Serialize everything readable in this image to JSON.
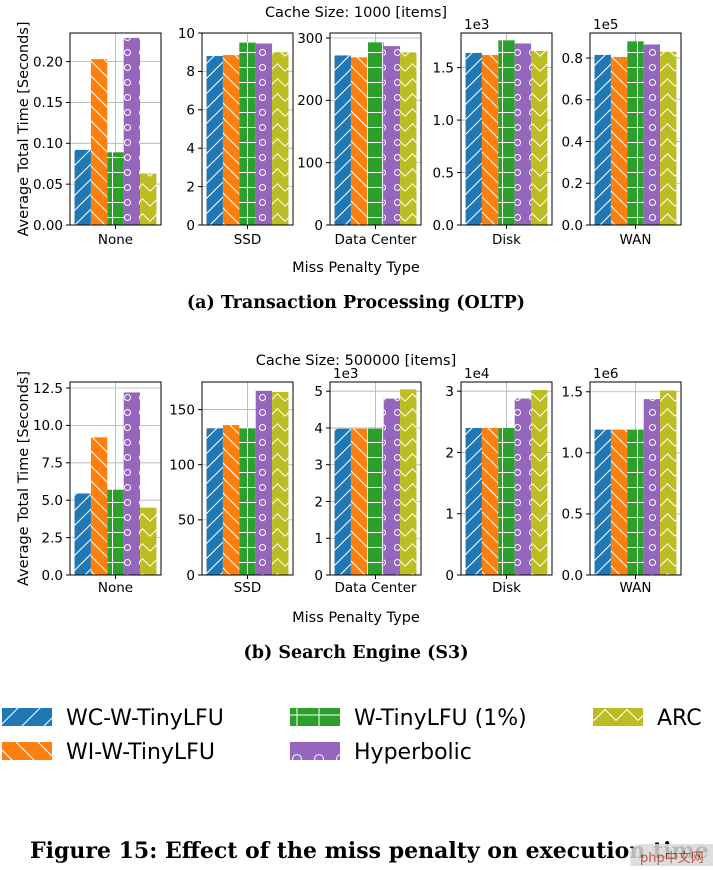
{
  "legend_entries": [
    {
      "name": "WC-W-TinyLFU",
      "color": "#1f77b4",
      "pattern": "diag"
    },
    {
      "name": "WI-W-TinyLFU",
      "color": "#ff7f0e",
      "pattern": "backdiag"
    },
    {
      "name": "W-TinyLFU (1%)",
      "color": "#2ca02c",
      "pattern": "grid"
    },
    {
      "name": "Hyperbolic",
      "color": "#9467bd",
      "pattern": "circles"
    },
    {
      "name": "ARC",
      "color": "#bcbd22",
      "pattern": "chevron"
    }
  ],
  "figure_caption": "Figure 15: Effect of the miss penalty on execution time",
  "watermark_text": "php中文网",
  "chart_data": [
    {
      "type": "bar",
      "suptitle": "Cache Size: 1000 [items]",
      "caption": "(a) Transaction Processing (OLTP)",
      "ylabel": "Average Total Time [Seconds]",
      "xlabel": "Miss Penalty Type",
      "panels": [
        {
          "category": "None",
          "multiplier": "",
          "ylim": [
            0,
            0.235
          ],
          "ticks": [
            0,
            0.05,
            0.1,
            0.15,
            0.2
          ],
          "tick_labels": [
            "0.00",
            "0.05",
            "0.10",
            "0.15",
            "0.20"
          ],
          "values": [
            0.092,
            0.203,
            0.089,
            0.229,
            0.063
          ]
        },
        {
          "category": "SSD",
          "multiplier": "",
          "ylim": [
            0,
            10
          ],
          "ticks": [
            0,
            2,
            4,
            6,
            8,
            10
          ],
          "tick_labels": [
            "0",
            "2",
            "4",
            "6",
            "8",
            "10"
          ],
          "values": [
            8.8,
            8.85,
            9.5,
            9.45,
            9.0
          ]
        },
        {
          "category": "Data Center",
          "multiplier": "",
          "ylim": [
            0,
            308
          ],
          "ticks": [
            0,
            100,
            200,
            300
          ],
          "tick_labels": [
            "0",
            "100",
            "200",
            "300"
          ],
          "values": [
            272,
            269,
            293,
            287,
            277
          ]
        },
        {
          "category": "Disk",
          "multiplier": "1e3",
          "ylim": [
            0,
            1.83
          ],
          "ticks": [
            0,
            0.5,
            1.0,
            1.5
          ],
          "tick_labels": [
            "0.0",
            "0.5",
            "1.0",
            "1.5"
          ],
          "values": [
            1.64,
            1.62,
            1.76,
            1.73,
            1.66
          ]
        },
        {
          "category": "WAN",
          "multiplier": "1e5",
          "ylim": [
            0,
            0.92
          ],
          "ticks": [
            0,
            0.2,
            0.4,
            0.6,
            0.8
          ],
          "tick_labels": [
            "0.0",
            "0.2",
            "0.4",
            "0.6",
            "0.8"
          ],
          "values": [
            0.815,
            0.805,
            0.88,
            0.865,
            0.83
          ]
        }
      ]
    },
    {
      "type": "bar",
      "suptitle": "Cache Size: 500000 [items]",
      "caption": "(b) Search Engine (S3)",
      "ylabel": "Average Total Time [Seconds]",
      "xlabel": "Miss Penalty Type",
      "panels": [
        {
          "category": "None",
          "multiplier": "",
          "ylim": [
            0,
            12.9
          ],
          "ticks": [
            0,
            2.5,
            5,
            7.5,
            10,
            12.5
          ],
          "tick_labels": [
            "0.0",
            "2.5",
            "5.0",
            "7.5",
            "10.0",
            "12.5"
          ],
          "values": [
            5.45,
            9.2,
            5.7,
            12.2,
            4.5
          ]
        },
        {
          "category": "SSD",
          "multiplier": "",
          "ylim": [
            0,
            175
          ],
          "ticks": [
            0,
            50,
            100,
            150
          ],
          "tick_labels": [
            "0",
            "50",
            "100",
            "150"
          ],
          "values": [
            133,
            136,
            133,
            167,
            166
          ]
        },
        {
          "category": "Data Center",
          "multiplier": "1e3",
          "ylim": [
            0,
            5.25
          ],
          "ticks": [
            0,
            1,
            2,
            3,
            4,
            5
          ],
          "tick_labels": [
            "0",
            "1",
            "2",
            "3",
            "4",
            "5"
          ],
          "values": [
            3.98,
            3.98,
            3.98,
            4.8,
            5.05
          ]
        },
        {
          "category": "Disk",
          "multiplier": "1e4",
          "ylim": [
            0,
            3.15
          ],
          "ticks": [
            0,
            1,
            2,
            3
          ],
          "tick_labels": [
            "0",
            "1",
            "2",
            "3"
          ],
          "values": [
            2.4,
            2.4,
            2.4,
            2.88,
            3.02
          ]
        },
        {
          "category": "WAN",
          "multiplier": "1e6",
          "ylim": [
            0,
            1.58
          ],
          "ticks": [
            0,
            0.5,
            1.0,
            1.5
          ],
          "tick_labels": [
            "0.0",
            "0.5",
            "1.0",
            "1.5"
          ],
          "values": [
            1.19,
            1.19,
            1.19,
            1.44,
            1.51
          ]
        }
      ]
    }
  ]
}
